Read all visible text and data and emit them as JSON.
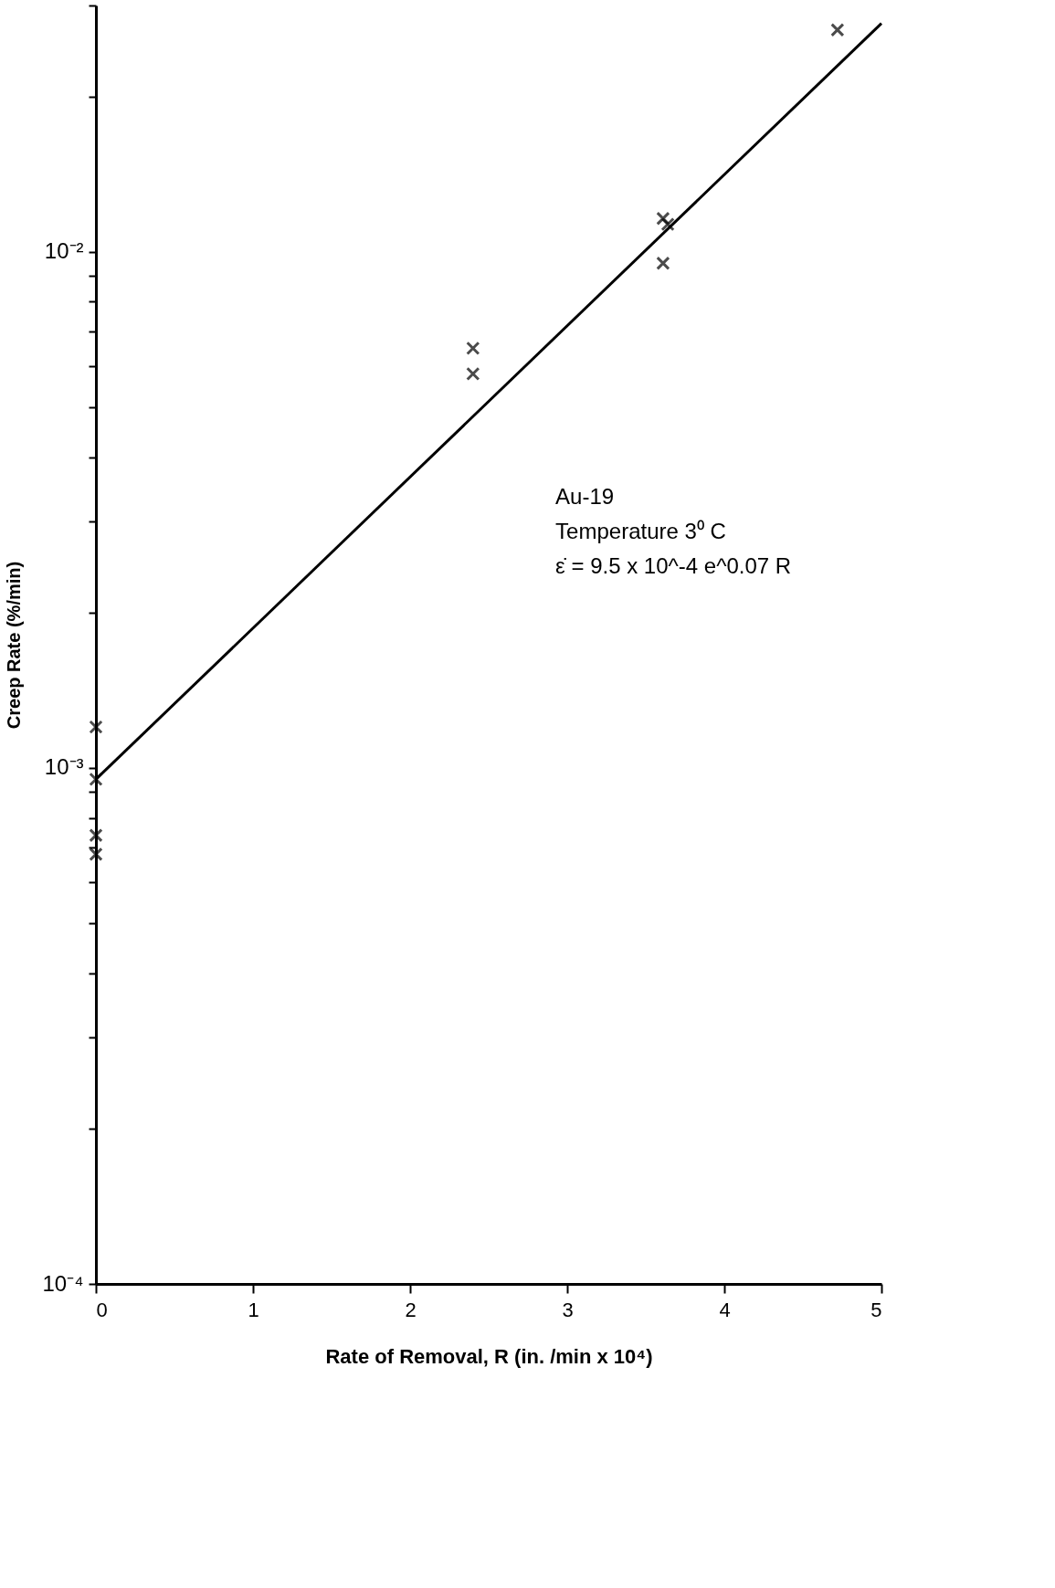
{
  "chart_data": {
    "type": "scatter",
    "xlabel": "Rate of Removal,  R (in. /min x 10⁴)",
    "ylabel": "Creep Rate (%/min)",
    "xlim": [
      0,
      5
    ],
    "xticks": [
      0,
      1,
      2,
      3,
      4,
      5
    ],
    "ylim": [
      0.0001,
      0.03
    ],
    "log": "y",
    "grid": false,
    "marker": "cross",
    "yticks": [
      {
        "value": 0.0001,
        "label": "10⁻⁴"
      },
      {
        "value": 0.0002,
        "label": null
      },
      {
        "value": 0.0003,
        "label": null
      },
      {
        "value": 0.0004,
        "label": null
      },
      {
        "value": 0.0005,
        "label": null
      },
      {
        "value": 0.0006,
        "label": null
      },
      {
        "value": 0.0007,
        "label": null
      },
      {
        "value": 0.0008,
        "label": null
      },
      {
        "value": 0.0009,
        "label": null
      },
      {
        "value": 0.001,
        "label": "10⁻³"
      },
      {
        "value": 0.002,
        "label": null
      },
      {
        "value": 0.003,
        "label": null
      },
      {
        "value": 0.004,
        "label": null
      },
      {
        "value": 0.005,
        "label": null
      },
      {
        "value": 0.006,
        "label": null
      },
      {
        "value": 0.007,
        "label": null
      },
      {
        "value": 0.008,
        "label": null
      },
      {
        "value": 0.009,
        "label": null
      },
      {
        "value": 0.01,
        "label": "10⁻²"
      },
      {
        "value": 0.02,
        "label": null
      },
      {
        "value": 0.03,
        "label": null
      }
    ],
    "series": [
      {
        "color": "#000000",
        "x": [
          0,
          0,
          0,
          0,
          2.4,
          2.4,
          3.61,
          3.64,
          3.61,
          4.72
        ],
        "values": [
          0.0012,
          0.00095,
          0.00074,
          0.00068,
          0.0065,
          0.0058,
          0.0116,
          0.0113,
          0.0095,
          0.0269
        ]
      },
      {
        "type": "line",
        "color": "#000000",
        "marker": "none",
        "line_style": "solid",
        "x": [
          0,
          5
        ],
        "values": [
          0.00095,
          0.0277
        ]
      }
    ],
    "annotations": [
      "Au-19",
      "Temperature 3⁰ C",
      "ε̇ = 9.5 x 10^-4 e^0.07 R"
    ]
  }
}
